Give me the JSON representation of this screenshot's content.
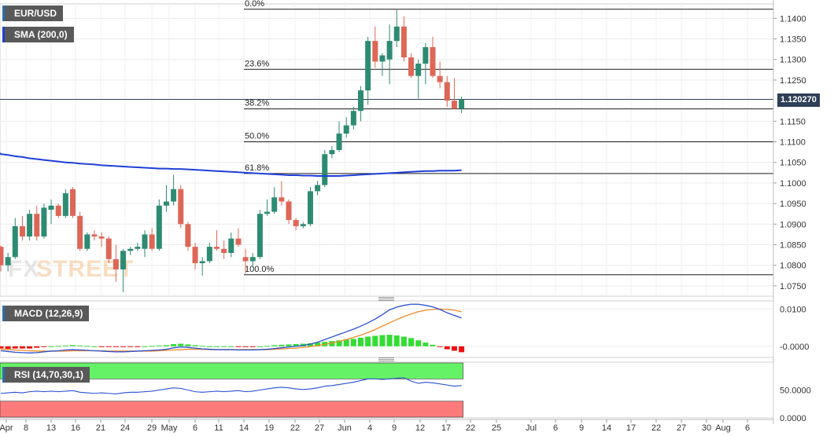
{
  "labels": {
    "symbol": "EUR/USD",
    "sma": "SMA (200,0)",
    "macd": "MACD (12,26,9)",
    "rsi": "RSI (14,70,30,1)",
    "current_price": "1.120270",
    "watermark_a": "FX",
    "watermark_b": "STREET"
  },
  "colors": {
    "up": "#2e8b73",
    "down": "#dd6757",
    "sma": "#1f3fd6",
    "macd_line": "#2a4fd0",
    "signal_line": "#f08a28",
    "hist_up": "#33dd33",
    "hist_down": "#ee1111",
    "rsi_overbought": "#66f266",
    "rsi_oversold": "#fb7b7b"
  },
  "chart_data": [
    {
      "type": "candlestick",
      "name": "EUR/USD",
      "y_ticks": [
        "1.0750",
        "1.0800",
        "1.0850",
        "1.0900",
        "1.0950",
        "1.1000",
        "1.1050",
        "1.1100",
        "1.1150",
        "1.1250",
        "1.1300",
        "1.1350",
        "1.1400"
      ],
      "ylim": [
        1.0725,
        1.1435
      ],
      "x_ticks": [
        "Apr",
        "8",
        "13",
        "16",
        "21",
        "24",
        "29",
        "May",
        "6",
        "11",
        "14",
        "19",
        "22",
        "27",
        "Jun",
        "4",
        "9",
        "12",
        "17",
        "22",
        "25",
        "Jul",
        "6",
        "9",
        "14",
        "17",
        "22",
        "27",
        "30",
        "Aug",
        "6"
      ],
      "candles": [
        {
          "o": 1.0845,
          "h": 1.0848,
          "l": 1.0785,
          "c": 1.08
        },
        {
          "o": 1.08,
          "h": 1.083,
          "l": 1.0785,
          "c": 1.082
        },
        {
          "o": 1.082,
          "h": 1.0915,
          "l": 1.0815,
          "c": 1.0895
        },
        {
          "o": 1.0895,
          "h": 1.092,
          "l": 1.086,
          "c": 1.087
        },
        {
          "o": 1.087,
          "h": 1.0935,
          "l": 1.086,
          "c": 1.0925
        },
        {
          "o": 1.0925,
          "h": 1.0945,
          "l": 1.086,
          "c": 1.087
        },
        {
          "o": 1.087,
          "h": 1.095,
          "l": 1.0865,
          "c": 1.094
        },
        {
          "o": 1.0935,
          "h": 1.096,
          "l": 1.09,
          "c": 1.0945
        },
        {
          "o": 1.0945,
          "h": 1.095,
          "l": 1.0915,
          "c": 1.092
        },
        {
          "o": 1.092,
          "h": 1.0985,
          "l": 1.0915,
          "c": 1.0975
        },
        {
          "o": 1.0985,
          "h": 1.099,
          "l": 1.0915,
          "c": 1.092
        },
        {
          "o": 1.092,
          "h": 1.093,
          "l": 1.0835,
          "c": 1.084
        },
        {
          "o": 1.084,
          "h": 1.088,
          "l": 1.0835,
          "c": 1.0875
        },
        {
          "o": 1.0875,
          "h": 1.0885,
          "l": 1.086,
          "c": 1.087
        },
        {
          "o": 1.087,
          "h": 1.088,
          "l": 1.0845,
          "c": 1.0865
        },
        {
          "o": 1.0865,
          "h": 1.087,
          "l": 1.0805,
          "c": 1.0815
        },
        {
          "o": 1.0815,
          "h": 1.085,
          "l": 1.076,
          "c": 1.079
        },
        {
          "o": 1.079,
          "h": 1.084,
          "l": 1.0735,
          "c": 1.0835
        },
        {
          "o": 1.0835,
          "h": 1.0845,
          "l": 1.0825,
          "c": 1.084
        },
        {
          "o": 1.084,
          "h": 1.0855,
          "l": 1.0835,
          "c": 1.0845
        },
        {
          "o": 1.084,
          "h": 1.0885,
          "l": 1.082,
          "c": 1.0875
        },
        {
          "o": 1.0875,
          "h": 1.089,
          "l": 1.0835,
          "c": 1.084
        },
        {
          "o": 1.084,
          "h": 1.096,
          "l": 1.0835,
          "c": 1.0945
        },
        {
          "o": 1.0945,
          "h": 1.0995,
          "l": 1.093,
          "c": 1.0955
        },
        {
          "o": 1.0955,
          "h": 1.102,
          "l": 1.0945,
          "c": 1.0985
        },
        {
          "o": 1.0985,
          "h": 1.0995,
          "l": 1.089,
          "c": 1.09
        },
        {
          "o": 1.09,
          "h": 1.0905,
          "l": 1.0835,
          "c": 1.0845
        },
        {
          "o": 1.0845,
          "h": 1.0855,
          "l": 1.079,
          "c": 1.0805
        },
        {
          "o": 1.0805,
          "h": 1.082,
          "l": 1.0775,
          "c": 1.081
        },
        {
          "o": 1.081,
          "h": 1.0855,
          "l": 1.0805,
          "c": 1.0845
        },
        {
          "o": 1.0845,
          "h": 1.0885,
          "l": 1.0835,
          "c": 1.084
        },
        {
          "o": 1.084,
          "h": 1.086,
          "l": 1.0815,
          "c": 1.083
        },
        {
          "o": 1.083,
          "h": 1.088,
          "l": 1.082,
          "c": 1.0865
        },
        {
          "o": 1.0865,
          "h": 1.089,
          "l": 1.0845,
          "c": 1.085
        },
        {
          "o": 1.082,
          "h": 1.084,
          "l": 1.078,
          "c": 1.081
        },
        {
          "o": 1.081,
          "h": 1.083,
          "l": 1.0795,
          "c": 1.082
        },
        {
          "o": 1.082,
          "h": 1.0935,
          "l": 1.0815,
          "c": 1.0925
        },
        {
          "o": 1.0925,
          "h": 1.096,
          "l": 1.092,
          "c": 1.093
        },
        {
          "o": 1.093,
          "h": 1.099,
          "l": 1.0925,
          "c": 1.0965
        },
        {
          "o": 1.0965,
          "h": 1.1005,
          "l": 1.0945,
          "c": 1.0955
        },
        {
          "o": 1.0955,
          "h": 1.096,
          "l": 1.09,
          "c": 1.091
        },
        {
          "o": 1.091,
          "h": 1.0915,
          "l": 1.0885,
          "c": 1.0895
        },
        {
          "o": 1.0895,
          "h": 1.0905,
          "l": 1.089,
          "c": 1.09
        },
        {
          "o": 1.09,
          "h": 1.099,
          "l": 1.0895,
          "c": 1.098
        },
        {
          "o": 1.098,
          "h": 1.1005,
          "l": 1.097,
          "c": 1.0995
        },
        {
          "o": 1.0995,
          "h": 1.108,
          "l": 1.099,
          "c": 1.107
        },
        {
          "o": 1.107,
          "h": 1.109,
          "l": 1.106,
          "c": 1.108
        },
        {
          "o": 1.108,
          "h": 1.115,
          "l": 1.1075,
          "c": 1.112
        },
        {
          "o": 1.112,
          "h": 1.116,
          "l": 1.111,
          "c": 1.114
        },
        {
          "o": 1.114,
          "h": 1.1185,
          "l": 1.113,
          "c": 1.1175
        },
        {
          "o": 1.1175,
          "h": 1.1235,
          "l": 1.115,
          "c": 1.1225
        },
        {
          "o": 1.1225,
          "h": 1.1355,
          "l": 1.119,
          "c": 1.1345
        },
        {
          "o": 1.1345,
          "h": 1.138,
          "l": 1.128,
          "c": 1.1295
        },
        {
          "o": 1.1295,
          "h": 1.1315,
          "l": 1.126,
          "c": 1.131
        },
        {
          "o": 1.13,
          "h": 1.1385,
          "l": 1.124,
          "c": 1.1345
        },
        {
          "o": 1.1345,
          "h": 1.1422,
          "l": 1.133,
          "c": 1.138
        },
        {
          "o": 1.138,
          "h": 1.1405,
          "l": 1.1295,
          "c": 1.1305
        },
        {
          "o": 1.1305,
          "h": 1.1315,
          "l": 1.1255,
          "c": 1.126
        },
        {
          "o": 1.126,
          "h": 1.13,
          "l": 1.1205,
          "c": 1.129
        },
        {
          "o": 1.129,
          "h": 1.134,
          "l": 1.124,
          "c": 1.133
        },
        {
          "o": 1.133,
          "h": 1.1355,
          "l": 1.1255,
          "c": 1.126
        },
        {
          "o": 1.126,
          "h": 1.1295,
          "l": 1.123,
          "c": 1.1245
        },
        {
          "o": 1.1245,
          "h": 1.126,
          "l": 1.1185,
          "c": 1.12
        },
        {
          "o": 1.12,
          "h": 1.1255,
          "l": 1.118,
          "c": 1.118
        },
        {
          "o": 1.118,
          "h": 1.121,
          "l": 1.117,
          "c": 1.1203
        }
      ],
      "sma_200": [
        1.107,
        1.1068,
        1.1065,
        1.1063,
        1.106,
        1.1058,
        1.1056,
        1.1054,
        1.1052,
        1.105,
        1.1049,
        1.1047,
        1.1046,
        1.1045,
        1.1043,
        1.1042,
        1.1041,
        1.104,
        1.1039,
        1.1038,
        1.1037,
        1.1036,
        1.1035,
        1.1035,
        1.1034,
        1.1034,
        1.1033,
        1.1032,
        1.1031,
        1.103,
        1.1029,
        1.1028,
        1.1027,
        1.1026,
        1.1025,
        1.1024,
        1.1023,
        1.1022,
        1.1021,
        1.102,
        1.1019,
        1.1019,
        1.1018,
        1.1018,
        1.1017,
        1.1017,
        1.1017,
        1.1017,
        1.1018,
        1.1019,
        1.102,
        1.1021,
        1.1022,
        1.1023,
        1.1024,
        1.1025,
        1.1026,
        1.1027,
        1.1028,
        1.1029,
        1.1029,
        1.103,
        1.103,
        1.103,
        1.1031
      ],
      "fib_levels": [
        {
          "label": "0.0%",
          "price": 1.1422
        },
        {
          "label": "23.6%",
          "price": 1.1276
        },
        {
          "label": "38.2%",
          "price": 1.118
        },
        {
          "label": "50.0%",
          "price": 1.11
        },
        {
          "label": "61.8%",
          "price": 1.1023
        },
        {
          "label": "100.0%",
          "price": 1.0777
        }
      ],
      "current_price": 1.1203
    },
    {
      "type": "macd",
      "name": "MACD (12,26,9)",
      "y_ticks": [
        "0.0100",
        "-0.0000"
      ],
      "ylim": [
        -0.003,
        0.0122
      ],
      "macd": [
        -0.0012,
        -0.0014,
        -0.0016,
        -0.0017,
        -0.0018,
        -0.0017,
        -0.0015,
        -0.0013,
        -0.0012,
        -0.001,
        -0.0009,
        -0.001,
        -0.0011,
        -0.0012,
        -0.0013,
        -0.0014,
        -0.0015,
        -0.0015,
        -0.0014,
        -0.0013,
        -0.0012,
        -0.0011,
        -0.001,
        -0.0008,
        -0.0004,
        -0.0002,
        -0.0003,
        -0.0005,
        -0.0007,
        -0.0008,
        -0.0009,
        -0.0009,
        -0.0009,
        -0.001,
        -0.001,
        -0.001,
        -0.0009,
        -0.0008,
        -0.0006,
        -0.0004,
        -0.0002,
        0.0,
        0.0002,
        0.0006,
        0.0011,
        0.0018,
        0.0025,
        0.0032,
        0.0039,
        0.0046,
        0.0054,
        0.0063,
        0.0073,
        0.0085,
        0.0098,
        0.0105,
        0.011,
        0.0113,
        0.0113,
        0.011,
        0.0106,
        0.0099,
        0.009,
        0.0083,
        0.0076
      ],
      "signal": [
        -0.0008,
        -0.0009,
        -0.001,
        -0.0011,
        -0.0012,
        -0.0013,
        -0.0013,
        -0.0013,
        -0.0013,
        -0.0013,
        -0.0012,
        -0.0012,
        -0.0012,
        -0.0012,
        -0.0012,
        -0.0013,
        -0.0013,
        -0.0013,
        -0.0013,
        -0.0013,
        -0.0013,
        -0.0013,
        -0.0012,
        -0.0011,
        -0.001,
        -0.0009,
        -0.0008,
        -0.0008,
        -0.0008,
        -0.0009,
        -0.0009,
        -0.0009,
        -0.0009,
        -0.0009,
        -0.0009,
        -0.0009,
        -0.0009,
        -0.0009,
        -0.0008,
        -0.0007,
        -0.0006,
        -0.0005,
        -0.0003,
        -0.0001,
        0.0002,
        0.0005,
        0.0009,
        0.0013,
        0.0018,
        0.0024,
        0.003,
        0.0037,
        0.0045,
        0.0054,
        0.0063,
        0.0072,
        0.008,
        0.0087,
        0.0093,
        0.0097,
        0.0099,
        0.01,
        0.0099,
        0.0097,
        0.0093
      ],
      "histogram": [
        -0.0006,
        -0.0007,
        -0.0006,
        -0.0006,
        -0.0006,
        -0.0004,
        -0.0002,
        0.0,
        0.0001,
        0.0002,
        0.0003,
        0.0002,
        0.0001,
        0.0,
        -0.0001,
        -0.0002,
        -0.0002,
        -0.0002,
        -0.0001,
        -0.0001,
        0.0,
        0.0001,
        0.0002,
        0.0003,
        0.0006,
        0.0007,
        0.0005,
        0.0003,
        0.0001,
        0.0,
        0.0,
        0.0,
        0.0,
        -0.0001,
        -0.0001,
        -0.0001,
        0.0,
        0.0001,
        0.0003,
        0.0004,
        0.0005,
        0.0006,
        0.0007,
        0.0008,
        0.001,
        0.0012,
        0.0014,
        0.0016,
        0.0018,
        0.002,
        0.0023,
        0.0026,
        0.0028,
        0.003,
        0.0031,
        0.0029,
        0.0026,
        0.0022,
        0.0016,
        0.001,
        0.0004,
        -0.0002,
        -0.0008,
        -0.0012,
        -0.0016
      ]
    },
    {
      "type": "rsi",
      "name": "RSI (14,70,30,1)",
      "y_ticks": [
        "50.0000",
        "0.0000"
      ],
      "ylim": [
        0,
        100
      ],
      "overbought": 70,
      "oversold": 30,
      "values": [
        44,
        45,
        46,
        45,
        47,
        48,
        47,
        48,
        47,
        48,
        49,
        46,
        45,
        44,
        45,
        44,
        43,
        45,
        46,
        46,
        47,
        48,
        50,
        52,
        54,
        53,
        50,
        47,
        46,
        47,
        48,
        47,
        48,
        49,
        47,
        48,
        50,
        52,
        54,
        55,
        54,
        52,
        51,
        52,
        54,
        57,
        58,
        60,
        62,
        64,
        67,
        70,
        70,
        69,
        70,
        71,
        72,
        66,
        62,
        64,
        63,
        61,
        59,
        57,
        58
      ]
    }
  ]
}
